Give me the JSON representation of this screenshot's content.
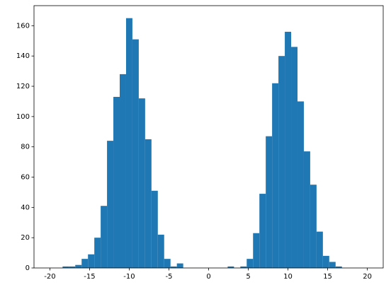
{
  "chart_data": {
    "type": "histogram",
    "bins": [
      -20,
      -19.2,
      -18.4,
      -17.6,
      -16.8,
      -16,
      -15.2,
      -14.4,
      -13.6,
      -12.8,
      -12,
      -11.2,
      -10.4,
      -9.6,
      -8.8,
      -8,
      -7.2,
      -6.4,
      -5.6,
      -4.8,
      -4,
      -3.2,
      -2.4,
      -1.6,
      -0.8,
      0,
      0.8,
      1.6,
      2.4,
      3.2,
      4,
      4.8,
      5.6,
      6.4,
      7.2,
      8,
      8.8,
      9.6,
      10.4,
      11.2,
      12,
      12.8,
      13.6,
      14.4,
      15.2,
      16,
      16.8,
      17.6,
      18.4,
      19.2,
      20
    ],
    "values": [
      0,
      0,
      1,
      1,
      2,
      6,
      9,
      20,
      41,
      84,
      113,
      128,
      165,
      151,
      112,
      85,
      51,
      22,
      6,
      1,
      3,
      0,
      0,
      0,
      0,
      0,
      0,
      0,
      1,
      0,
      1,
      6,
      23,
      49,
      87,
      122,
      140,
      156,
      146,
      110,
      77,
      55,
      24,
      8,
      4,
      1,
      0,
      0,
      0,
      0
    ],
    "color": "#1f77b4",
    "xlim": [
      -22,
      22
    ],
    "xticks": [
      -20,
      -15,
      -10,
      -5,
      0,
      5,
      10,
      15,
      20
    ],
    "ylim": [
      0,
      173.25
    ],
    "yticks": [
      0,
      20,
      40,
      60,
      80,
      100,
      120,
      140,
      160
    ]
  }
}
